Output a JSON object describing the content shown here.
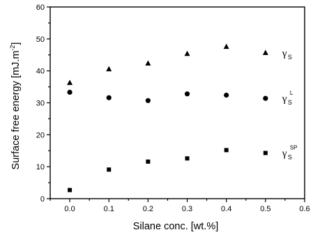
{
  "chart_data": {
    "type": "scatter",
    "xlabel": "Silane conc. [wt.%]",
    "ylabel": "Surface free energy [mJ.m",
    "ylabel_exp": "-2",
    "ylabel_tail": "]",
    "xlim": [
      -0.05,
      0.6
    ],
    "ylim": [
      0,
      60
    ],
    "xticks": [
      "0.0",
      "0.1",
      "0.2",
      "0.3",
      "0.4",
      "0.5",
      "0.6"
    ],
    "yticks": [
      "0",
      "10",
      "20",
      "30",
      "40",
      "50",
      "60"
    ],
    "grid": false,
    "x": [
      0.0,
      0.1,
      0.2,
      0.3,
      0.4,
      0.5
    ],
    "series": [
      {
        "key": "s",
        "marker": "triangle",
        "label_base": "γ",
        "label_sub": "S",
        "label_sup": "",
        "values": [
          36.2,
          40.5,
          42.3,
          45.3,
          47.5,
          45.6
        ],
        "error": [
          0.0,
          0.0,
          0.0,
          0.0,
          0.0,
          0.0
        ]
      },
      {
        "key": "l",
        "marker": "circle",
        "label_base": "γ",
        "label_sub": "S",
        "label_sup": "L",
        "values": [
          33.3,
          31.6,
          30.7,
          32.8,
          32.4,
          31.4
        ],
        "error": [
          0.0,
          0.0,
          0.0,
          0.0,
          0.6,
          0.0
        ]
      },
      {
        "key": "sp",
        "marker": "square",
        "label_base": "γ",
        "label_sub": "S",
        "label_sup": "SP",
        "values": [
          2.7,
          9.1,
          11.6,
          12.6,
          15.2,
          14.3
        ],
        "error": [
          0.0,
          0.0,
          0.0,
          0.0,
          0.0,
          0.0
        ]
      }
    ]
  }
}
